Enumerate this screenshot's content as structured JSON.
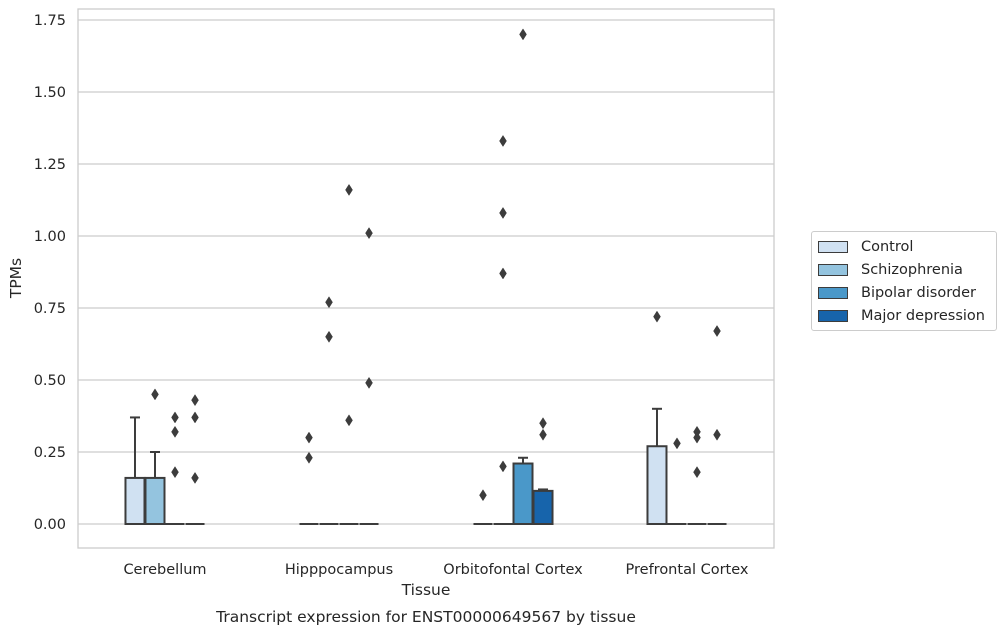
{
  "chart_data": {
    "type": "box",
    "title": "",
    "xlabel": "Tissue",
    "ylabel": "TPMs",
    "caption": "Transcript expression for ENST00000649567 by tissue",
    "ylim": [
      -0.08,
      1.8
    ],
    "yticks": [
      0.0,
      0.25,
      0.5,
      0.75,
      1.0,
      1.25,
      1.5,
      1.75
    ],
    "ytick_labels": [
      "0.00",
      "0.25",
      "0.50",
      "0.75",
      "1.00",
      "1.25",
      "1.50",
      "1.75"
    ],
    "grid": "horizontal",
    "legend_position": "right",
    "categories": [
      "Cerebellum",
      "Hipppocampus",
      "Orbitofontal Cortex",
      "Prefrontal Cortex"
    ],
    "series": [
      {
        "name": "Control",
        "color": "#d0e1f2",
        "boxes": [
          {
            "q1": 0,
            "median": 0,
            "q3": 0.16,
            "whisker_low": 0,
            "whisker_high": 0.37,
            "outliers": []
          },
          {
            "q1": 0,
            "median": 0,
            "q3": 0,
            "whisker_low": 0,
            "whisker_high": 0,
            "outliers": [
              0.3,
              0.23
            ]
          },
          {
            "q1": 0,
            "median": 0,
            "q3": 0,
            "whisker_low": 0,
            "whisker_high": 0,
            "outliers": [
              0.1
            ]
          },
          {
            "q1": 0,
            "median": 0,
            "q3": 0.27,
            "whisker_low": 0,
            "whisker_high": 0.4,
            "outliers": [
              0.72
            ]
          }
        ]
      },
      {
        "name": "Schizophrenia",
        "color": "#94c4df",
        "boxes": [
          {
            "q1": 0,
            "median": 0,
            "q3": 0.16,
            "whisker_low": 0,
            "whisker_high": 0.25,
            "outliers": [
              0.45
            ]
          },
          {
            "q1": 0,
            "median": 0,
            "q3": 0,
            "whisker_low": 0,
            "whisker_high": 0,
            "outliers": [
              0.77,
              0.65
            ]
          },
          {
            "q1": 0,
            "median": 0,
            "q3": 0,
            "whisker_low": 0,
            "whisker_high": 0,
            "outliers": [
              0.2,
              1.33,
              1.08,
              0.87
            ]
          },
          {
            "q1": 0,
            "median": 0,
            "q3": 0,
            "whisker_low": 0,
            "whisker_high": 0,
            "outliers": [
              0.28
            ]
          }
        ]
      },
      {
        "name": "Bipolar disorder",
        "color": "#4a98c9",
        "boxes": [
          {
            "q1": 0,
            "median": 0,
            "q3": 0,
            "whisker_low": 0,
            "whisker_high": 0,
            "outliers": [
              0.37,
              0.32,
              0.18
            ]
          },
          {
            "q1": 0,
            "median": 0,
            "q3": 0,
            "whisker_low": 0,
            "whisker_high": 0,
            "outliers": [
              1.16,
              0.36
            ]
          },
          {
            "q1": 0,
            "median": 0,
            "q3": 0.21,
            "whisker_low": 0,
            "whisker_high": 0.23,
            "outliers": [
              1.7
            ]
          },
          {
            "q1": 0,
            "median": 0,
            "q3": 0,
            "whisker_low": 0,
            "whisker_high": 0,
            "outliers": [
              0.32,
              0.3,
              0.18
            ]
          }
        ]
      },
      {
        "name": "Major depression",
        "color": "#1764ab",
        "boxes": [
          {
            "q1": 0,
            "median": 0,
            "q3": 0,
            "whisker_low": 0,
            "whisker_high": 0,
            "outliers": [
              0.43,
              0.37,
              0.16
            ]
          },
          {
            "q1": 0,
            "median": 0,
            "q3": 0,
            "whisker_low": 0,
            "whisker_high": 0,
            "outliers": [
              1.01,
              0.49
            ]
          },
          {
            "q1": 0,
            "median": 0,
            "q3": 0.115,
            "whisker_low": 0,
            "whisker_high": 0.12,
            "outliers": [
              0.35,
              0.31
            ]
          },
          {
            "q1": 0,
            "median": 0,
            "q3": 0,
            "whisker_low": 0,
            "whisker_high": 0,
            "outliers": [
              0.67,
              0.31
            ]
          }
        ]
      }
    ]
  }
}
